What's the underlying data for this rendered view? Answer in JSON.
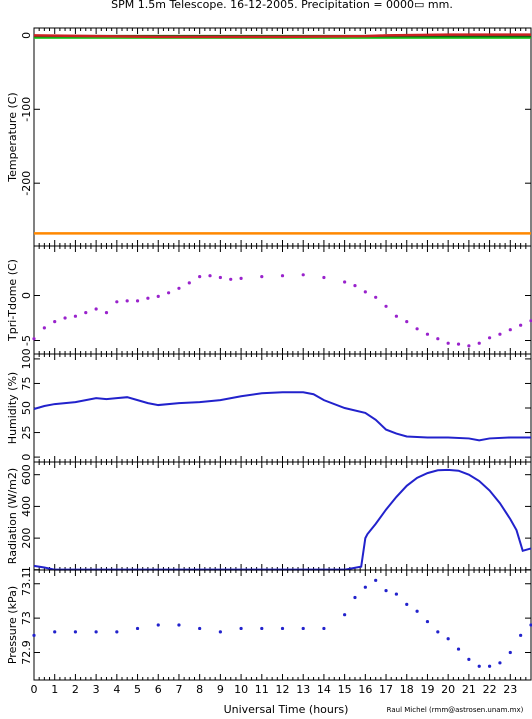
{
  "title": "SPM 1.5m Telescope. 16-12-2005. Precipitation = 0000▭ mm.",
  "credit": "Raul Michel (rmm@astrosen.unam.mx)",
  "xlabel": "Universal Time (hours)",
  "colors": {
    "background": "#ffffff",
    "axes": "#000000",
    "green": "#22cc22",
    "orange": "#ff8800",
    "red": "#cc2222",
    "dark_green": "#116611",
    "purple": "#9922cc",
    "blue": "#2222cc"
  },
  "chart_data": [
    {
      "type": "line",
      "name": "temperature",
      "ylabel": "Temperature (C)",
      "xlim": [
        0,
        24
      ],
      "ylim": [
        -285,
        10
      ],
      "yticks": [
        0,
        -100,
        -200
      ],
      "xticks": [
        0,
        1,
        2,
        3,
        4,
        5,
        6,
        7,
        8,
        9,
        10,
        11,
        12,
        13,
        14,
        15,
        16,
        17,
        18,
        19,
        20,
        21,
        22,
        23
      ],
      "series": [
        {
          "color": "green",
          "x": [
            0,
            24
          ],
          "y": [
            -3,
            -3
          ]
        },
        {
          "color": "dark_green",
          "x": [
            0,
            24
          ],
          "y": [
            -1,
            -1
          ]
        },
        {
          "color": "red",
          "x": [
            0,
            3,
            6,
            12,
            16,
            17,
            20,
            24
          ],
          "y": [
            0,
            -1,
            -2,
            -2,
            -1,
            0,
            1,
            1
          ]
        },
        {
          "color": "orange",
          "x": [
            0,
            24
          ],
          "y": [
            -268,
            -268
          ]
        }
      ]
    },
    {
      "type": "scatter",
      "name": "tpri_tdome",
      "ylabel": "Tpri-Tdome (C)",
      "xlim": [
        0,
        24
      ],
      "ylim": [
        -6.5,
        5.5
      ],
      "yticks": [
        0,
        -5
      ],
      "xticks": [
        0,
        1,
        2,
        3,
        4,
        5,
        6,
        7,
        8,
        9,
        10,
        11,
        12,
        13,
        14,
        15,
        16,
        17,
        18,
        19,
        20,
        21,
        22,
        23
      ],
      "series": [
        {
          "color": "purple",
          "x": [
            0,
            0.5,
            1,
            1.5,
            2,
            2.5,
            3,
            3.5,
            4,
            4.5,
            5,
            5.5,
            6,
            6.5,
            7,
            7.5,
            8,
            8.5,
            9,
            9.5,
            10,
            11,
            12,
            13,
            14,
            15,
            15.5,
            16,
            16.5,
            17,
            17.5,
            18,
            18.5,
            19,
            19.5,
            20,
            20.5,
            21,
            21.5,
            22,
            22.5,
            23,
            23.5,
            24
          ],
          "y": [
            -4.8,
            -3.6,
            -2.9,
            -2.5,
            -2.3,
            -1.9,
            -1.5,
            -1.9,
            -0.7,
            -0.6,
            -0.6,
            -0.3,
            -0.1,
            0.3,
            0.8,
            1.4,
            2.1,
            2.2,
            2.0,
            1.8,
            1.9,
            2.1,
            2.2,
            2.3,
            2.0,
            1.5,
            1.1,
            0.4,
            -0.2,
            -1.2,
            -2.3,
            -2.9,
            -3.7,
            -4.3,
            -4.8,
            -5.3,
            -5.4,
            -5.6,
            -5.3,
            -4.7,
            -4.3,
            -3.8,
            -3.3,
            -2.8
          ]
        }
      ]
    },
    {
      "type": "line",
      "name": "humidity",
      "ylabel": "Humidity (%)",
      "xlim": [
        0,
        24
      ],
      "ylim": [
        -5,
        105
      ],
      "yticks": [
        0,
        25,
        50,
        75,
        100
      ],
      "xticks": [
        0,
        1,
        2,
        3,
        4,
        5,
        6,
        7,
        8,
        9,
        10,
        11,
        12,
        13,
        14,
        15,
        16,
        17,
        18,
        19,
        20,
        21,
        22,
        23
      ],
      "series": [
        {
          "color": "blue",
          "x": [
            0,
            0.5,
            1,
            2,
            3,
            3.5,
            4,
            4.5,
            5,
            5.5,
            6,
            7,
            8,
            9,
            10,
            11,
            12,
            13,
            13.5,
            14,
            15,
            16,
            16.5,
            17,
            17.5,
            18,
            19,
            20,
            21,
            21.5,
            22,
            23,
            24
          ],
          "y": [
            49,
            52,
            54,
            56,
            60,
            59,
            60,
            61,
            58,
            55,
            53,
            55,
            56,
            58,
            62,
            65,
            66,
            66,
            64,
            58,
            50,
            45,
            38,
            28,
            24,
            21,
            20,
            20,
            19,
            17,
            19,
            20,
            20
          ]
        }
      ]
    },
    {
      "type": "line",
      "name": "radiation",
      "ylabel": "Radiation (W/m2)",
      "xlim": [
        0,
        24
      ],
      "ylim": [
        -1,
        680
      ],
      "yticks": [
        1,
        200,
        400,
        600
      ],
      "xticks": [
        0,
        1,
        2,
        3,
        4,
        5,
        6,
        7,
        8,
        9,
        10,
        11,
        12,
        13,
        14,
        15,
        16,
        17,
        18,
        19,
        20,
        21,
        22,
        23
      ],
      "series": [
        {
          "color": "blue",
          "x": [
            0,
            0.5,
            1,
            5,
            10,
            15,
            15.8,
            16,
            16.1,
            16.5,
            17,
            17.5,
            18,
            18.5,
            19,
            19.5,
            20,
            20.5,
            21,
            21.5,
            22,
            22.5,
            23,
            23.3,
            23.6,
            24
          ],
          "y": [
            25,
            15,
            1,
            1,
            1,
            1,
            20,
            200,
            225,
            290,
            380,
            460,
            530,
            580,
            610,
            628,
            630,
            625,
            600,
            560,
            500,
            420,
            320,
            250,
            120,
            135
          ]
        }
      ]
    },
    {
      "type": "scatter",
      "name": "pressure",
      "ylabel": "Pressure (kPa)",
      "xlim": [
        0,
        24
      ],
      "ylim": [
        72.82,
        73.14
      ],
      "yticks": [
        72.9,
        73.0,
        73.1
      ],
      "ytick_labels": [
        "72.9",
        "73",
        "73.1"
      ],
      "xticks": [
        0,
        1,
        2,
        3,
        4,
        5,
        6,
        7,
        8,
        9,
        10,
        11,
        12,
        13,
        14,
        15,
        16,
        17,
        18,
        19,
        20,
        21,
        22,
        23
      ],
      "series": [
        {
          "color": "blue",
          "x": [
            0,
            1,
            2,
            3,
            4,
            5,
            6,
            7,
            8,
            9,
            10,
            11,
            12,
            13,
            14,
            15,
            15.5,
            16,
            16.5,
            17,
            17.5,
            18,
            18.5,
            19,
            19.5,
            20,
            20.5,
            21,
            21.5,
            22,
            22.5,
            23,
            23.5,
            24
          ],
          "y": [
            72.95,
            72.96,
            72.96,
            72.96,
            72.96,
            72.97,
            72.98,
            72.98,
            72.97,
            72.96,
            72.97,
            72.97,
            72.97,
            72.97,
            72.97,
            73.01,
            73.06,
            73.09,
            73.11,
            73.08,
            73.07,
            73.04,
            73.02,
            72.99,
            72.96,
            72.94,
            72.91,
            72.88,
            72.86,
            72.86,
            72.87,
            72.9,
            72.95,
            72.98
          ]
        }
      ]
    }
  ]
}
